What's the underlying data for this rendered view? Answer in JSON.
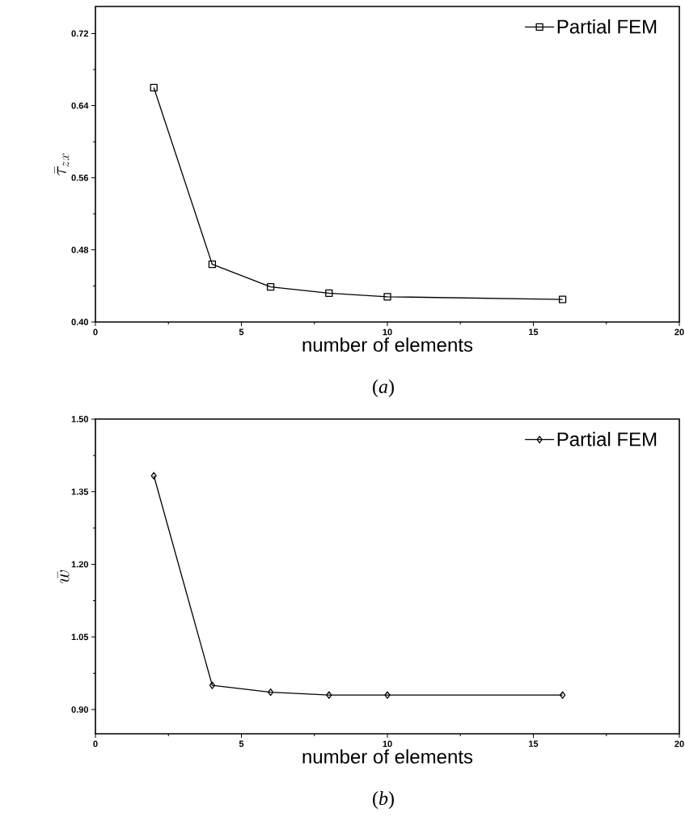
{
  "chart_data": [
    {
      "type": "line",
      "xlabel": "number of elements",
      "ylabel": "\\bar{\\tau}_{zx}",
      "annotations": [
        "(*a*)"
      ],
      "x": [
        2,
        4,
        6,
        8,
        10,
        16
      ],
      "series": [
        {
          "name": "Partial FEM",
          "color": "#000000",
          "values": [
            0.66,
            0.464,
            0.439,
            0.432,
            0.428,
            0.425
          ]
        }
      ],
      "xlim": [
        0,
        20
      ],
      "ylim": [
        0.4,
        0.75
      ],
      "xticks": [
        0,
        5,
        10,
        15,
        20
      ],
      "yticks": [
        {
          "value": 0.4,
          "label": "0.40"
        },
        0.48,
        0.56,
        0.64,
        0.72
      ],
      "legend": "top right",
      "marker": "square"
    },
    {
      "type": "line",
      "xlabel": "number of elements",
      "ylabel": "\\bar{w}",
      "annotations": [
        "(*b*)"
      ],
      "x": [
        2,
        4,
        6,
        8,
        10,
        16
      ],
      "series": [
        {
          "name": "Partial FEM",
          "color": "#000000",
          "values": [
            1.383,
            0.95,
            0.936,
            0.93,
            0.93,
            0.93
          ]
        }
      ],
      "xlim": [
        0,
        20
      ],
      "ylim": [
        0.85,
        1.5
      ],
      "xticks": [
        0,
        5,
        10,
        15,
        20
      ],
      "yticks": [
        {
          "value": 0.9,
          "label": "0.90"
        },
        1.05,
        {
          "value": 1.2,
          "label": "1.20"
        },
        1.35,
        {
          "value": 1.5,
          "label": "1.50"
        }
      ],
      "legend": "top right",
      "marker": "diamond"
    }
  ]
}
